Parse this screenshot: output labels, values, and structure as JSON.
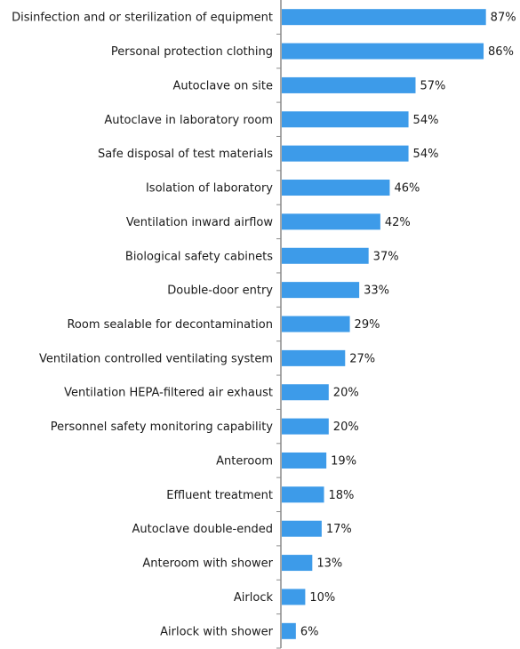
{
  "chart_data": {
    "type": "bar",
    "orientation": "horizontal",
    "title": "",
    "xlabel": "",
    "ylabel": "",
    "xlim": [
      0,
      100
    ],
    "value_suffix": "%",
    "grid": false,
    "legend": "none",
    "bar_color": "#3d9be9",
    "axis_color": "#8c8c8c",
    "categories": [
      "Disinfection and or sterilization of equipment",
      "Personal protection clothing",
      "Autoclave on site",
      "Autoclave in laboratory room",
      "Safe disposal of test materials",
      "Isolation of laboratory",
      "Ventilation inward airflow",
      "Biological safety cabinets",
      "Double-door entry",
      "Room sealable for decontamination",
      "Ventilation controlled ventilating system",
      "Ventilation HEPA-filtered air exhaust",
      "Personnel safety monitoring capability",
      "Anteroom",
      "Effluent treatment",
      "Autoclave double-ended",
      "Anteroom with shower",
      "Airlock",
      "Airlock with shower"
    ],
    "values": [
      87,
      86,
      57,
      54,
      54,
      46,
      42,
      37,
      33,
      29,
      27,
      20,
      20,
      19,
      18,
      17,
      13,
      10,
      6
    ]
  }
}
